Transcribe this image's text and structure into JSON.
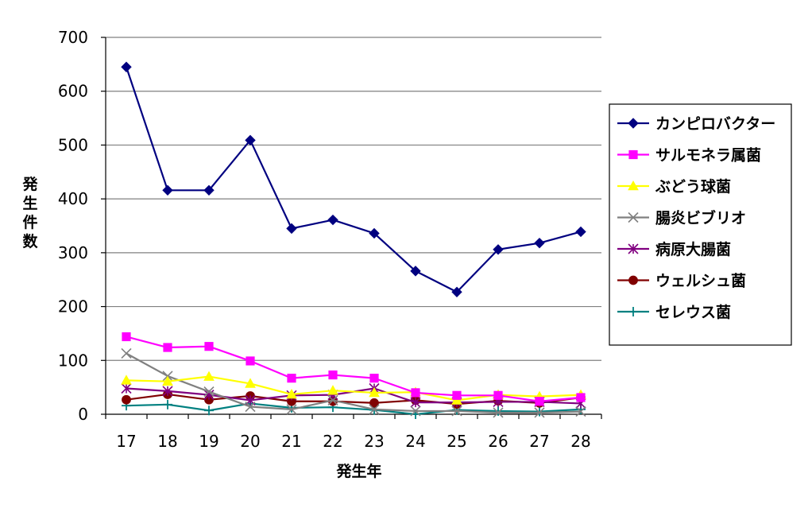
{
  "chart_data": {
    "type": "line",
    "title": "",
    "xlabel": "発生年",
    "ylabel": "発生件数",
    "x": [
      "17",
      "18",
      "19",
      "20",
      "21",
      "22",
      "23",
      "24",
      "25",
      "26",
      "27",
      "28"
    ],
    "ylim": [
      0,
      700
    ],
    "yticks": [
      "0",
      "100",
      "200",
      "300",
      "400",
      "500",
      "600",
      "700"
    ],
    "grid": "horizontal",
    "legend_position": "right",
    "series": [
      {
        "name": "カンピロバクター",
        "color": "#000080",
        "marker": "diamond",
        "values": [
          645,
          416,
          416,
          509,
          345,
          361,
          336,
          266,
          227,
          306,
          318,
          339
        ]
      },
      {
        "name": "サルモネラ属菌",
        "color": "#ff00ff",
        "marker": "square",
        "values": [
          144,
          124,
          126,
          99,
          67,
          73,
          67,
          40,
          35,
          35,
          24,
          31
        ]
      },
      {
        "name": "ぶどう球菌",
        "color": "#ffff00",
        "marker": "triangle",
        "values": [
          63,
          61,
          70,
          57,
          37,
          44,
          40,
          41,
          26,
          36,
          33,
          36
        ]
      },
      {
        "name": "腸炎ビブリオ",
        "color": "#808080",
        "marker": "x",
        "values": [
          113,
          71,
          42,
          14,
          9,
          26,
          9,
          6,
          6,
          3,
          3,
          5
        ]
      },
      {
        "name": "病原大腸菌",
        "color": "#800080",
        "marker": "star",
        "values": [
          48,
          43,
          36,
          26,
          35,
          36,
          48,
          22,
          22,
          23,
          23,
          20
        ]
      },
      {
        "name": "ウェルシュ菌",
        "color": "#800000",
        "marker": "circle",
        "values": [
          27,
          37,
          27,
          34,
          24,
          24,
          21,
          26,
          19,
          25,
          21,
          31
        ]
      },
      {
        "name": "セレウス菌",
        "color": "#008080",
        "marker": "plus",
        "values": [
          16,
          18,
          7,
          20,
          12,
          13,
          8,
          0,
          8,
          6,
          5,
          9
        ]
      }
    ]
  }
}
